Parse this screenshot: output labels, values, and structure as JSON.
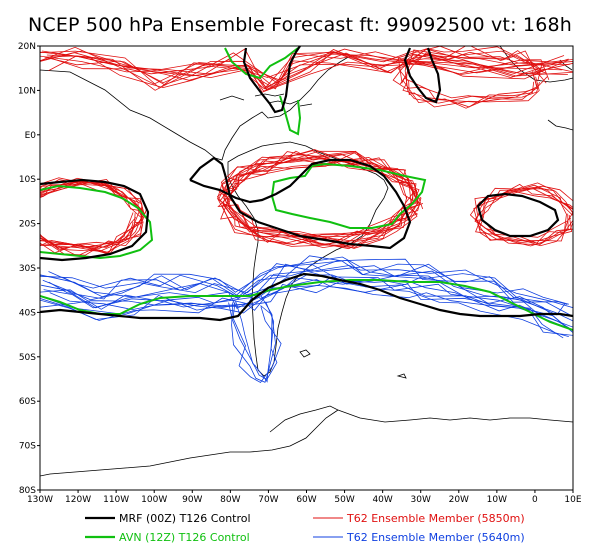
{
  "title": "NCEP 500 hPa Ensemble Forecast  ft: 99092500 vt: 168h",
  "axes": {
    "lon_range": [
      -130,
      10
    ],
    "lat_range": [
      -80,
      20
    ],
    "lat_ticks": [
      {
        "value": 20,
        "label": "20N"
      },
      {
        "value": 10,
        "label": "10N"
      },
      {
        "value": 0,
        "label": "E0"
      },
      {
        "value": -10,
        "label": "10S"
      },
      {
        "value": -20,
        "label": "20S"
      },
      {
        "value": -30,
        "label": "30S"
      },
      {
        "value": -40,
        "label": "40S"
      },
      {
        "value": -50,
        "label": "50S"
      },
      {
        "value": -60,
        "label": "60S"
      },
      {
        "value": -70,
        "label": "70S"
      },
      {
        "value": -80,
        "label": "80S"
      }
    ],
    "lon_ticks": [
      {
        "value": -130,
        "label": "130W"
      },
      {
        "value": -120,
        "label": "120W"
      },
      {
        "value": -110,
        "label": "110W"
      },
      {
        "value": -100,
        "label": "100W"
      },
      {
        "value": -90,
        "label": "90W"
      },
      {
        "value": -80,
        "label": "80W"
      },
      {
        "value": -70,
        "label": "70W"
      },
      {
        "value": -60,
        "label": "60W"
      },
      {
        "value": -50,
        "label": "50W"
      },
      {
        "value": -40,
        "label": "40W"
      },
      {
        "value": -30,
        "label": "30W"
      },
      {
        "value": -20,
        "label": "20W"
      },
      {
        "value": -10,
        "label": "10W"
      },
      {
        "value": 0,
        "label": "0"
      },
      {
        "value": 10,
        "label": "10E"
      }
    ]
  },
  "legend": [
    {
      "label": "MRF (00Z) T126 Control",
      "color": "#000000"
    },
    {
      "label": "T62 Ensemble Member (5850m)",
      "color": "#e01010"
    },
    {
      "label": "AVN (12Z) T126 Control",
      "color": "#10c010"
    },
    {
      "label": "T62 Ensemble Member (5640m)",
      "color": "#1040e0"
    }
  ],
  "colors": {
    "mrf": "#000000",
    "avn": "#10c010",
    "member_5850": "#e01010",
    "member_5640": "#1040e0",
    "coast": "#000000"
  }
}
